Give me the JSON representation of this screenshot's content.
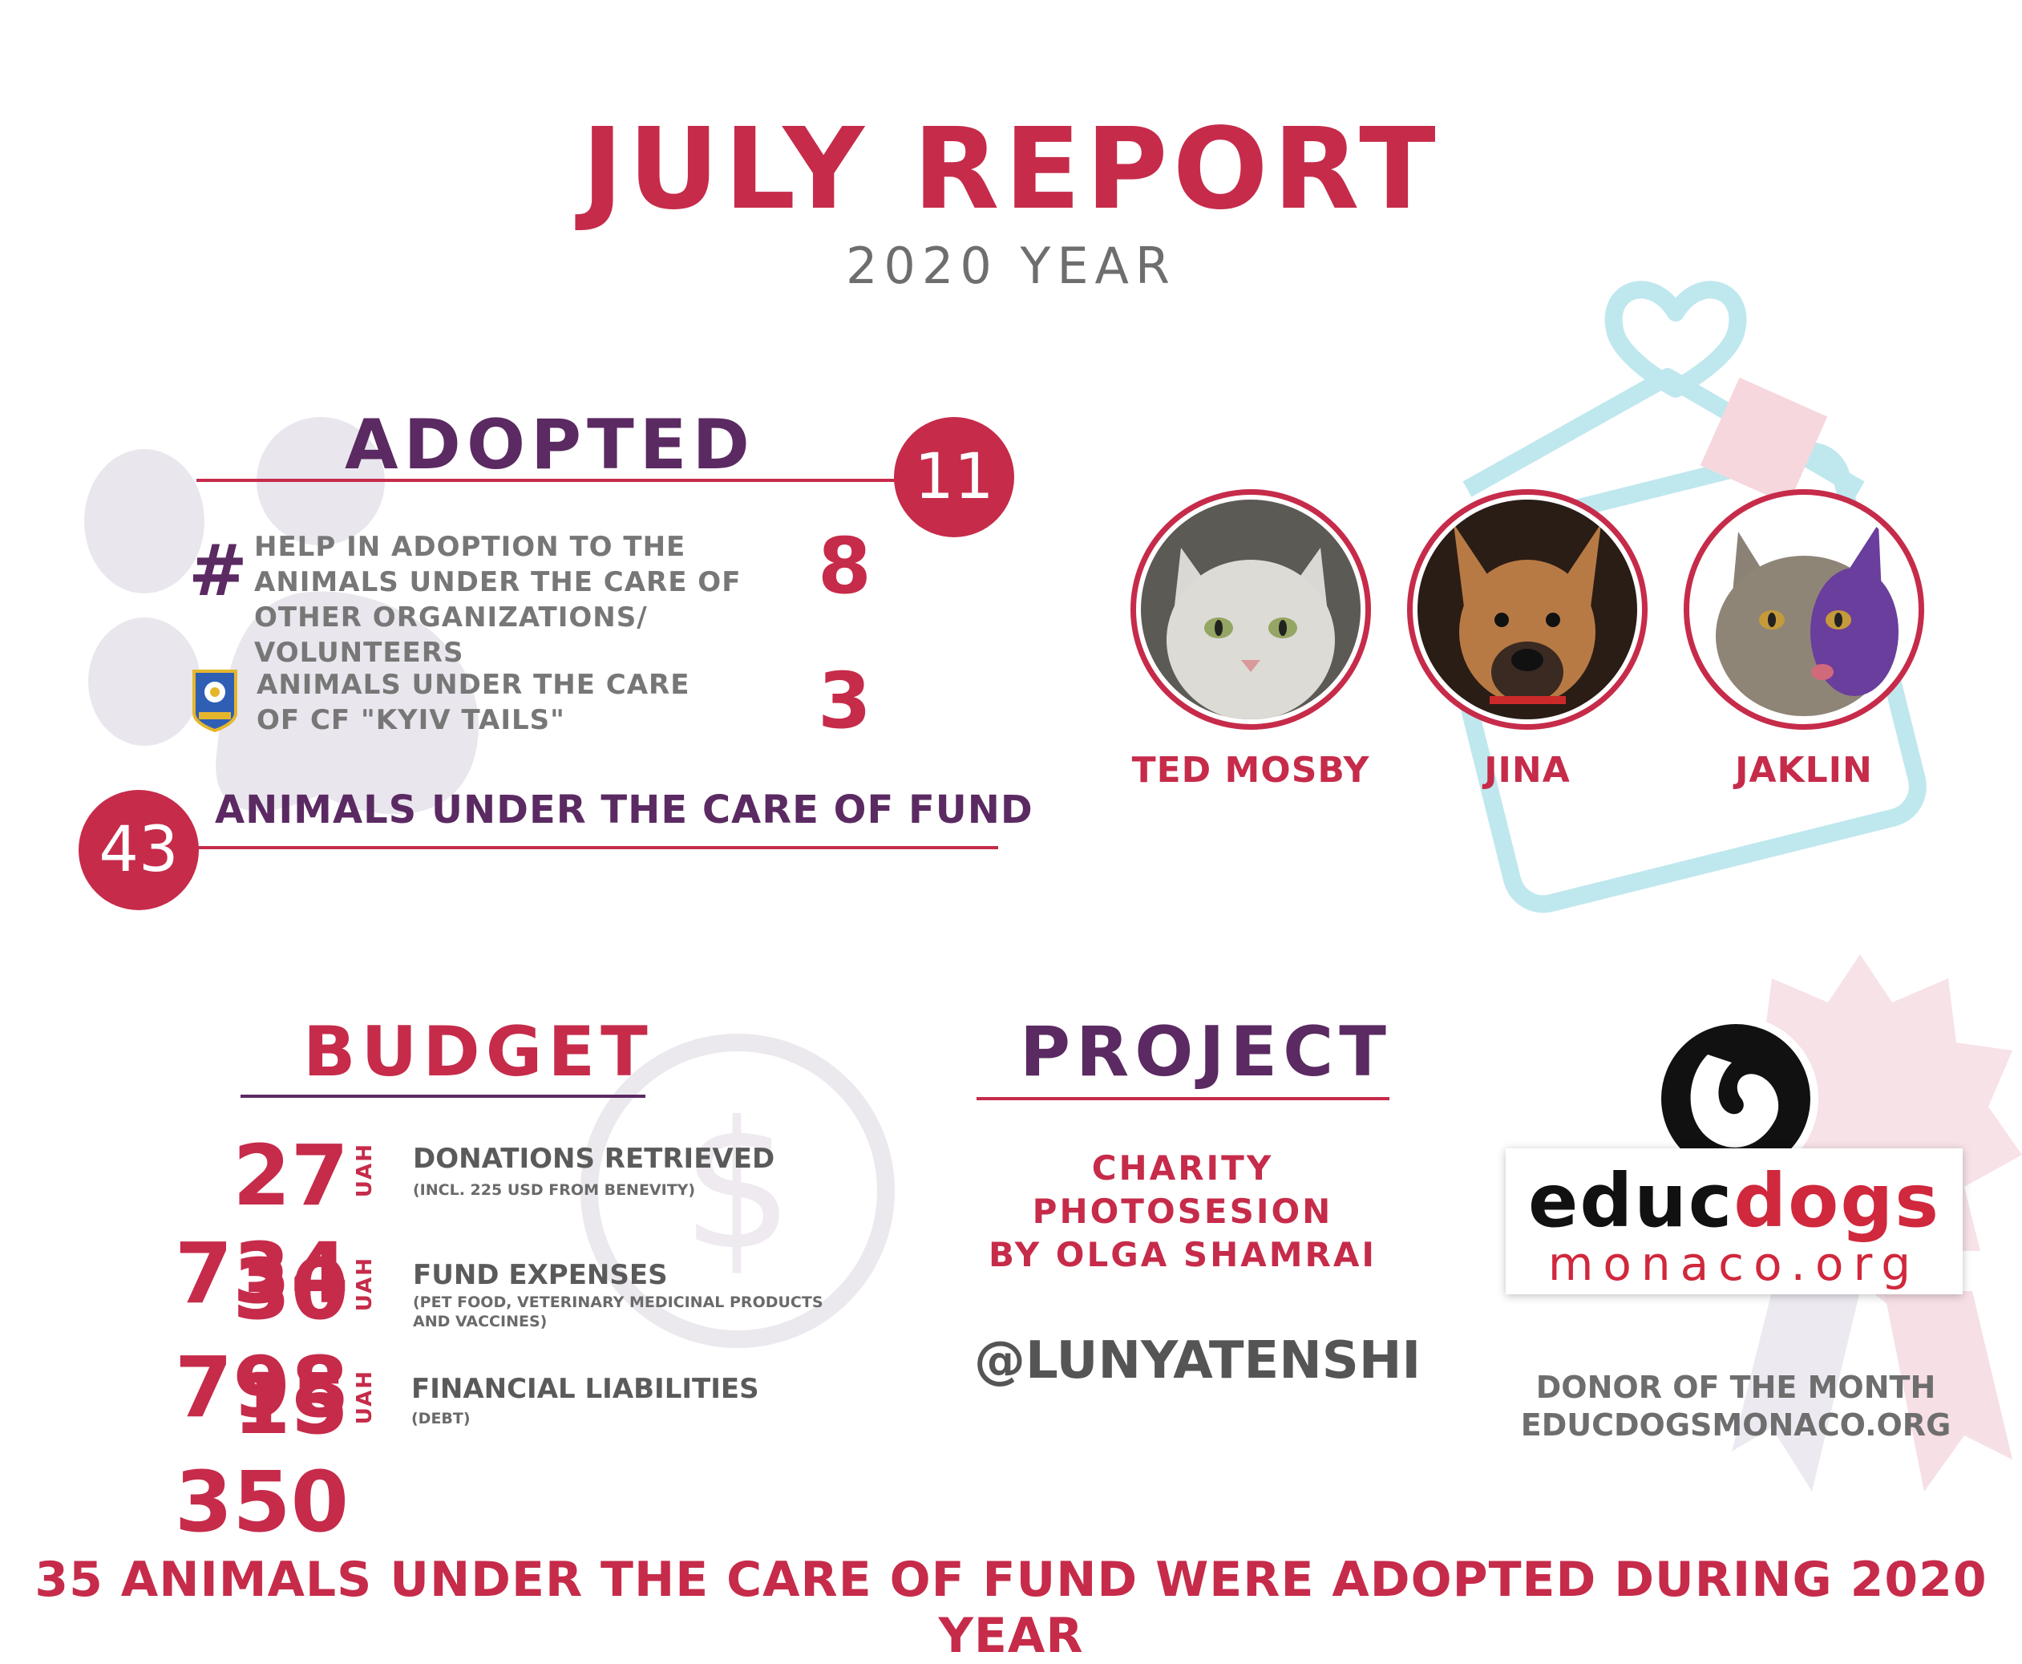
{
  "header": {
    "title": "JULY REPORT",
    "subtitle": "2020 YEAR"
  },
  "adopted": {
    "heading": "ADOPTED",
    "total": "11",
    "items": [
      {
        "icon": "hash-icon",
        "text": "HELP IN ADOPTION TO THE ANIMALS UNDER THE CARE OF OTHER ORGANIZATIONS/ VOLUNTEERS",
        "value": "8"
      },
      {
        "icon": "kyiv-tails-logo",
        "text": "ANIMALS UNDER THE CARE OF CF \"KYIV TAILS\"",
        "value": "3"
      }
    ],
    "care_count": "43",
    "care_label": "ANIMALS UNDER THE CARE OF FUND",
    "hash_symbol": "#"
  },
  "pets": [
    {
      "name": "TED MOSBY",
      "kind": "cat-photo"
    },
    {
      "name": "JINA",
      "kind": "dog-photo"
    },
    {
      "name": "JAKLIN",
      "kind": "cat-photo"
    }
  ],
  "budget": {
    "heading": "BUDGET",
    "rows": [
      {
        "amount": "27 734",
        "currency": "UAH",
        "label": "DONATIONS RETRIEVED",
        "note": "(INCL. 225 USD FROM BENEVITY)"
      },
      {
        "amount": "30 798",
        "currency": "UAH",
        "label": "FUND EXPENSES",
        "note": "(PET FOOD, VETERINARY MEDICINAL PRODUCTS AND VACCINES)"
      },
      {
        "amount": "15 350",
        "currency": "UAH",
        "label": "FINANCIAL LIABILITIES",
        "note": "(DEBT)"
      }
    ]
  },
  "project": {
    "heading": "PROJECT",
    "lines": [
      "CHARITY",
      "PHOTOSESION",
      "BY OLGA SHAMRAI"
    ],
    "handle": "@LUNYATENSHI"
  },
  "donor": {
    "logo_top": "educ",
    "logo_accent": "dogs",
    "logo_bottom": "monaco.org",
    "label": "DONOR OF THE MONTH",
    "site": "EDUCDOGSMONACO.ORG"
  },
  "footer": "35 ANIMALS UNDER THE CARE OF FUND WERE ADOPTED DURING 2020 YEAR",
  "colors": {
    "crimson": "#c62b4a",
    "purple": "#5b2a62",
    "gray": "#6e6e6e",
    "light_blue": "#bfe7ee"
  }
}
